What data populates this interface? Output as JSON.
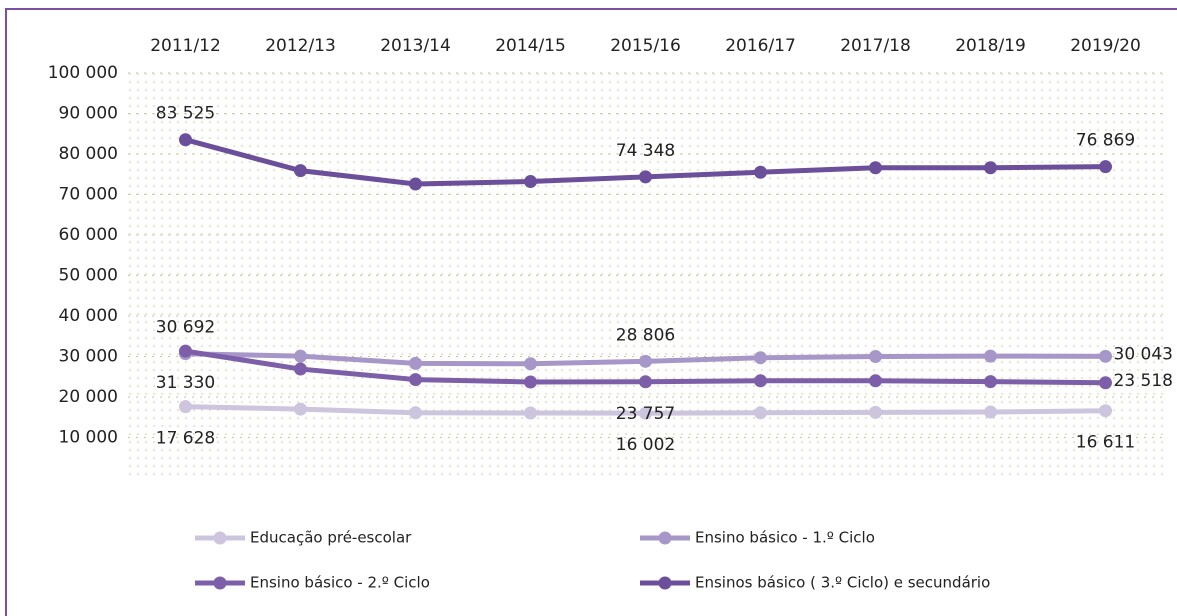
{
  "chart_data": {
    "type": "line",
    "categories": [
      "2011/12",
      "2012/13",
      "2013/14",
      "2014/15",
      "2015/16",
      "2016/17",
      "2017/18",
      "2018/19",
      "2019/20"
    ],
    "series": [
      {
        "name": "Educação pré-escolar",
        "color": "#cdc4de",
        "values": [
          17628,
          17000,
          16100,
          16050,
          16002,
          16100,
          16200,
          16300,
          16611
        ],
        "value_labels": [
          "17 628",
          null,
          null,
          null,
          "16 002",
          null,
          null,
          null,
          "16 611"
        ]
      },
      {
        "name": "Ensino básico - 1.º Ciclo",
        "color": "#a797c8",
        "values": [
          30692,
          30100,
          28300,
          28200,
          28806,
          29700,
          30000,
          30100,
          30043
        ],
        "value_labels": [
          "30 692",
          null,
          null,
          null,
          "28 806",
          null,
          null,
          null,
          "30 043"
        ]
      },
      {
        "name": "Ensino básico - 2.º Ciclo",
        "color": "#7d5fa9",
        "values": [
          31330,
          26900,
          24300,
          23700,
          23757,
          24000,
          24000,
          23800,
          23518
        ],
        "value_labels": [
          "31 330",
          null,
          null,
          null,
          "23 757",
          null,
          null,
          null,
          "23 518"
        ]
      },
      {
        "name": "Ensinos básico ( 3.º Ciclo) e secundário",
        "color": "#6c4f9a",
        "values": [
          83525,
          75900,
          72600,
          73200,
          74348,
          75500,
          76600,
          76600,
          76869
        ],
        "value_labels": [
          "83 525",
          null,
          null,
          null,
          "74 348",
          null,
          null,
          null,
          "76 869"
        ]
      }
    ],
    "ylim": [
      0,
      100000
    ],
    "yticks": [
      {
        "value": 10000,
        "label": "10 000"
      },
      {
        "value": 20000,
        "label": "20 000"
      },
      {
        "value": 30000,
        "label": "30 000"
      },
      {
        "value": 40000,
        "label": "40 000"
      },
      {
        "value": 50000,
        "label": "50 000"
      },
      {
        "value": 60000,
        "label": "60 000"
      },
      {
        "value": 70000,
        "label": "70 000"
      },
      {
        "value": 80000,
        "label": "80 000"
      },
      {
        "value": 90000,
        "label": "90 000"
      },
      {
        "value": 100000,
        "label": "100 000"
      }
    ],
    "grid": true
  }
}
